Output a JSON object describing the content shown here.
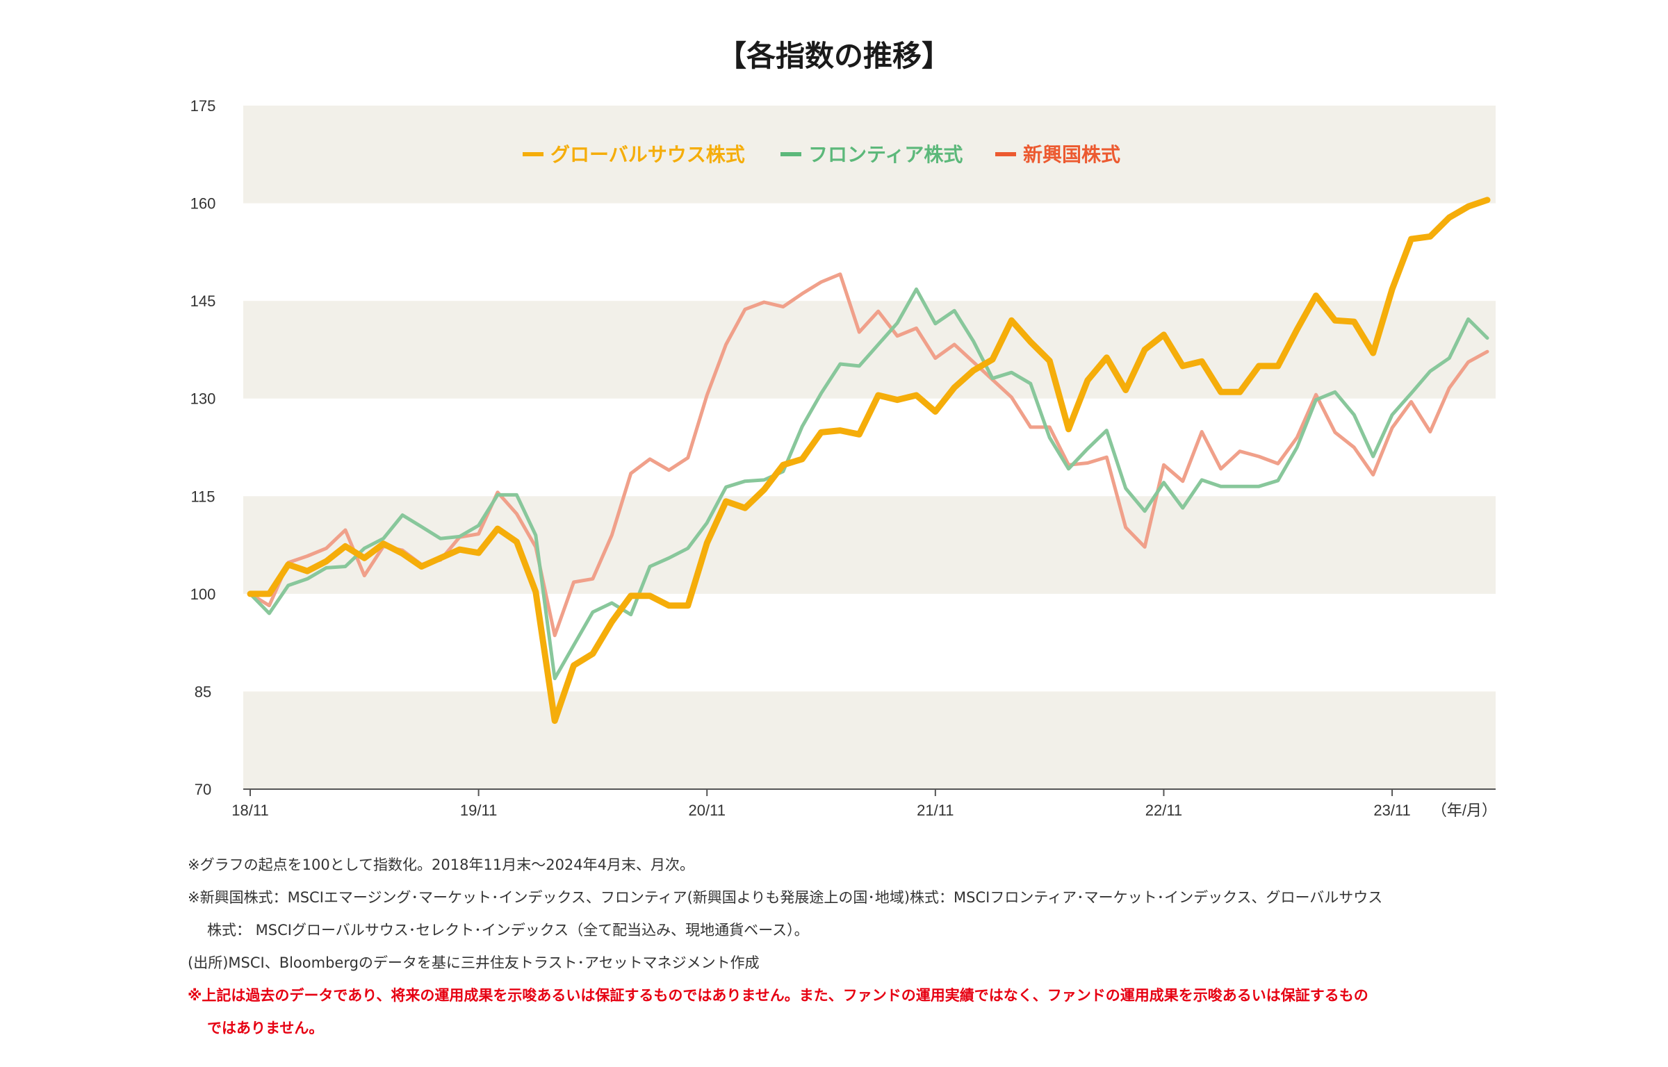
{
  "chart_data": {
    "type": "line",
    "title": "【各指数の推移】",
    "xlabel": "",
    "ylabel": "",
    "x_unit_label": "（年/月）",
    "ylim": [
      70,
      175
    ],
    "yticks": [
      70,
      85,
      100,
      115,
      130,
      145,
      160,
      175
    ],
    "x_start": "2018-11",
    "x_end": "2024-04",
    "xtick_labels": [
      "18/11",
      "19/11",
      "20/11",
      "21/11",
      "22/11",
      "23/11"
    ],
    "xtick_months": [
      0,
      12,
      24,
      36,
      48,
      60
    ],
    "band_color": "#f2f0e9",
    "series": [
      {
        "name": "グローバルサウス株式",
        "color": "#f5ad0a",
        "values": [
          100,
          100,
          104.5,
          103.5,
          105,
          107.3,
          105.5,
          107.7,
          106.2,
          104.2,
          105.5,
          106.8,
          106.3,
          110,
          108,
          100.3,
          80.5,
          89,
          90.8,
          95.7,
          99.7,
          99.7,
          98.2,
          98.2,
          107.8,
          114.2,
          113.2,
          116,
          119.8,
          120.7,
          124.8,
          125.1,
          124.5,
          130.5,
          129.8,
          130.5,
          128,
          131.7,
          134.3,
          136,
          142,
          138.7,
          135.8,
          125.3,
          132.8,
          136.3,
          131.3,
          137.5,
          139.8,
          135,
          135.7,
          131,
          131,
          135,
          135,
          140.6,
          145.8,
          142,
          141.8,
          137,
          146.8,
          154.5,
          154.9,
          157.8,
          159.5,
          160.5
        ]
      },
      {
        "name": "フロンティア株式",
        "color": "#88c79b",
        "values": [
          100,
          97,
          101.3,
          102.3,
          104,
          104.2,
          107,
          108.5,
          112.1,
          110.3,
          108.5,
          108.8,
          110.5,
          115.2,
          115.2,
          109,
          87,
          92.1,
          97.2,
          98.6,
          96.8,
          104.2,
          105.5,
          107,
          110.9,
          116.4,
          117.3,
          117.5,
          118.8,
          125.7,
          130.8,
          135.3,
          135,
          138.3,
          141.6,
          146.8,
          141.5,
          143.5,
          138.8,
          133.1,
          134,
          132.3,
          124,
          119.2,
          122.3,
          125.1,
          116.2,
          112.7,
          117.1,
          113.2,
          117.5,
          116.5,
          116.5,
          116.5,
          117.4,
          122.5,
          129.8,
          131,
          127.5,
          121.1,
          127.5,
          130.8,
          134.2,
          136.2,
          142.2,
          139.3
        ]
      },
      {
        "name": "新興国株式",
        "color": "#f0a08a",
        "values": [
          100,
          98.2,
          104.8,
          105.8,
          107,
          109.8,
          102.8,
          107.3,
          106.7,
          104.5,
          105.2,
          108.7,
          109.2,
          115.6,
          112.3,
          107.2,
          93.6,
          101.8,
          102.3,
          109,
          118.5,
          120.7,
          119,
          120.9,
          130.5,
          138.3,
          143.7,
          144.8,
          144.1,
          146.1,
          147.9,
          149.1,
          140.2,
          143.4,
          139.6,
          140.8,
          136.2,
          138.3,
          135.6,
          132.9,
          130.2,
          125.6,
          125.6,
          119.8,
          120.1,
          121,
          110.2,
          107.2,
          119.8,
          117.3,
          124.9,
          119.2,
          121.9,
          121.1,
          120,
          124,
          130.6,
          124.8,
          122.5,
          118.3,
          125.5,
          129.5,
          124.9,
          131.6,
          135.6,
          137.2
        ]
      }
    ]
  },
  "notes": {
    "line1": "※グラフの起点を100として指数化。2018年11月末～2024年4月末、月次。",
    "line2": "※新興国株式：MSCIエマージング･マーケット･インデックス、フロンティア(新興国よりも発展途上の国･地域)株式：MSCIフロンティア･マーケット･インデックス、グローバルサウス",
    "line3": "株式： MSCIグローバルサウス･セレクト･インデックス（全て配当込み、現地通貨ベース）。",
    "line4": "(出所)MSCI、Bloombergのデータを基に三井住友トラスト･アセットマネジメント作成",
    "line5": "※上記は過去のデータであり、将来の運用成果を示唆あるいは保証するものではありません。また、ファンドの運用実績ではなく、ファンドの運用成果を示唆あるいは保証するもの",
    "line6": "ではありません。"
  }
}
